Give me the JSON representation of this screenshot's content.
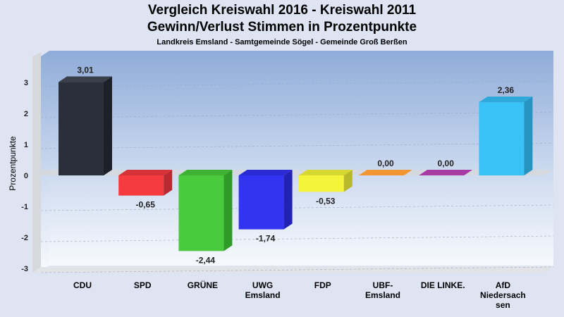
{
  "chart_data": {
    "type": "bar",
    "title": "Vergleich Kreiswahl 2016 - Kreiswahl 2011",
    "subtitle": "Gewinn/Verlust Stimmen in Prozentpunkte",
    "caption": "Landkreis Emsland - Samtgemeinde Sögel - Gemeinde Groß Berßen",
    "ylabel": "Prozentpunkte",
    "xlabel": "",
    "ylim": [
      -3.2,
      3.8
    ],
    "yticks": [
      3,
      2,
      1,
      0,
      -1,
      -2,
      -3
    ],
    "grid": true,
    "legend": "none",
    "categories": [
      [
        "CDU"
      ],
      [
        "SPD"
      ],
      [
        "GRÜNE"
      ],
      [
        "UWG",
        "Emsland"
      ],
      [
        "FDP"
      ],
      [
        "UBF-",
        "Emsland"
      ],
      [
        "DIE LINKE."
      ],
      [
        "AfD",
        "Niedersach",
        "sen"
      ]
    ],
    "values": [
      3.01,
      -0.65,
      -2.44,
      -1.74,
      -0.53,
      0.0,
      0.0,
      2.36
    ],
    "value_labels": [
      "3,01",
      "-0,65",
      "-2,44",
      "-1,74",
      "-0,53",
      "0,00",
      "0,00",
      "2,36"
    ],
    "tick_labels": [
      "3",
      "2",
      "1",
      "0",
      "-1",
      "-2",
      "-3"
    ],
    "colors": [
      "#2b2f3a",
      "#f53a40",
      "#4acb3e",
      "#3333f2",
      "#f4f43a",
      "#f29533",
      "#a83aa3",
      "#38c2f6"
    ],
    "side_colors": [
      "#1d2029",
      "#b82a30",
      "#2f9a28",
      "#2222b5",
      "#b9b82a",
      "#c07222",
      "#7d2a7a",
      "#2694c0"
    ],
    "top_colors": [
      "#3a3f4c",
      "#d63238",
      "#3fb234",
      "#2b2bd3",
      "#d8d832",
      "#f29533",
      "#a83aa3",
      "#2fa9da"
    ]
  }
}
